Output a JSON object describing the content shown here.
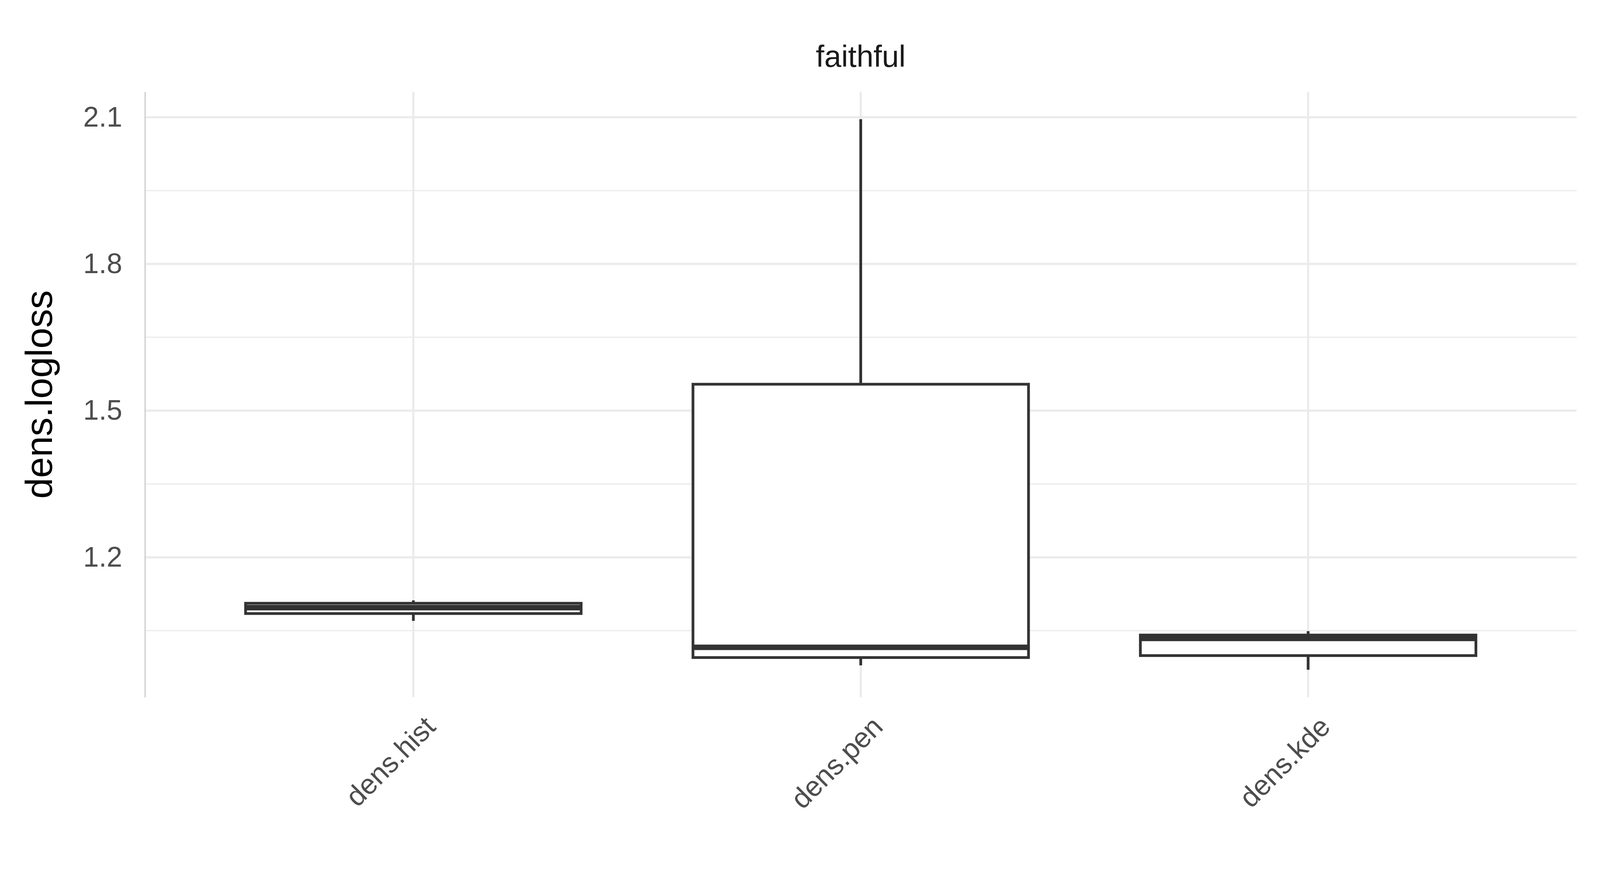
{
  "chart_data": {
    "type": "boxplot",
    "title": "faithful",
    "y_label": "dens.logloss",
    "categories": [
      "dens.hist",
      "dens.pen",
      "dens.kde"
    ],
    "values": [
      {
        "min": 1.07,
        "q1": 1.085,
        "median": 1.097,
        "q3": 1.106,
        "max": 1.112
      },
      {
        "min": 0.979,
        "q1": 0.995,
        "median": 1.016,
        "q3": 1.554,
        "max": 2.096
      },
      {
        "min": 0.97,
        "q1": 0.999,
        "median": 1.034,
        "q3": 1.041,
        "max": 1.049
      }
    ],
    "color": "#333333",
    "ylim": [
      0.914,
      2.152
    ],
    "yticks": [
      1.2,
      1.5,
      1.8,
      2.1
    ],
    "grid": true
  }
}
